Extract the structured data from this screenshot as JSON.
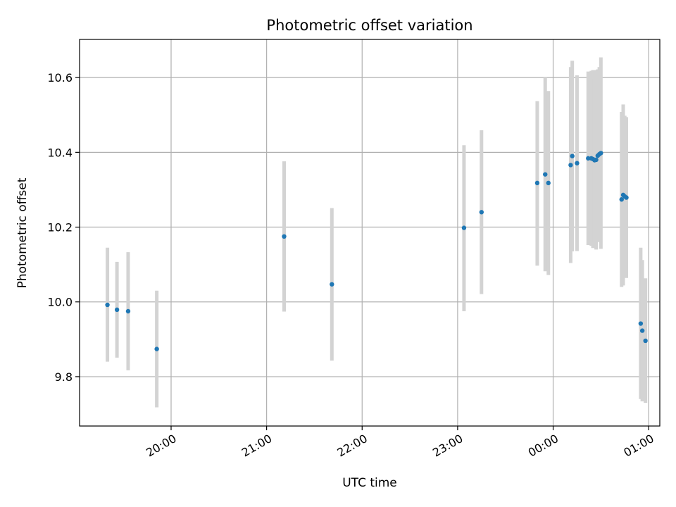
{
  "chart_data": {
    "type": "scatter",
    "title": "Photometric offset variation",
    "xlabel": "UTC time",
    "ylabel": "Photometric offset",
    "grid": true,
    "x_tick_labels": [
      "20:00",
      "21:00",
      "22:00",
      "23:00",
      "00:00",
      "01:00"
    ],
    "x_tick_minutes": [
      1200,
      1260,
      1320,
      1380,
      1440,
      1500
    ],
    "xlim_minutes": [
      1142.5,
      1507
    ],
    "y_ticks": [
      9.8,
      10.0,
      10.2,
      10.4,
      10.6
    ],
    "y_tick_labels": [
      "9.8",
      "10.0",
      "10.2",
      "10.4",
      "10.6"
    ],
    "ylim": [
      9.668,
      10.702
    ],
    "colors": {
      "point": "#1f77b4",
      "errorbar": "#d3d3d3",
      "grid": "#b0b0b0"
    },
    "points": [
      {
        "t": "19:20",
        "y": 9.992,
        "lo": 9.84,
        "hi": 10.145
      },
      {
        "t": "19:26",
        "y": 9.979,
        "lo": 9.851,
        "hi": 10.107
      },
      {
        "t": "19:33",
        "y": 9.975,
        "lo": 9.817,
        "hi": 10.133
      },
      {
        "t": "19:51",
        "y": 9.874,
        "lo": 9.718,
        "hi": 10.03
      },
      {
        "t": "21:11",
        "y": 10.175,
        "lo": 9.974,
        "hi": 10.376
      },
      {
        "t": "21:41",
        "y": 10.047,
        "lo": 9.843,
        "hi": 10.251
      },
      {
        "t": "23:04",
        "y": 10.198,
        "lo": 9.975,
        "hi": 10.419
      },
      {
        "t": "23:15",
        "y": 10.24,
        "lo": 10.021,
        "hi": 10.459
      },
      {
        "t": "23:50",
        "y": 10.318,
        "lo": 10.097,
        "hi": 10.537
      },
      {
        "t": "23:55",
        "y": 10.341,
        "lo": 10.082,
        "hi": 10.6
      },
      {
        "t": "23:57",
        "y": 10.318,
        "lo": 10.072,
        "hi": 10.564
      },
      {
        "t": "00:11",
        "y": 10.366,
        "lo": 10.104,
        "hi": 10.628
      },
      {
        "t": "00:12",
        "y": 10.39,
        "lo": 10.135,
        "hi": 10.645
      },
      {
        "t": "00:15",
        "y": 10.371,
        "lo": 10.136,
        "hi": 10.606
      },
      {
        "t": "00:22",
        "y": 10.384,
        "lo": 10.152,
        "hi": 10.616
      },
      {
        "t": "00:24",
        "y": 10.384,
        "lo": 10.15,
        "hi": 10.618
      },
      {
        "t": "00:25",
        "y": 10.382,
        "lo": 10.144,
        "hi": 10.62
      },
      {
        "t": "00:26",
        "y": 10.379,
        "lo": 10.16,
        "hi": 10.598
      },
      {
        "t": "00:27",
        "y": 10.38,
        "lo": 10.14,
        "hi": 10.62
      },
      {
        "t": "00:28",
        "y": 10.391,
        "lo": 10.16,
        "hi": 10.622
      },
      {
        "t": "00:29",
        "y": 10.395,
        "lo": 10.162,
        "hi": 10.628
      },
      {
        "t": "00:30",
        "y": 10.398,
        "lo": 10.142,
        "hi": 10.654
      },
      {
        "t": "00:43",
        "y": 10.274,
        "lo": 10.04,
        "hi": 10.508
      },
      {
        "t": "00:44",
        "y": 10.286,
        "lo": 10.044,
        "hi": 10.528
      },
      {
        "t": "00:45",
        "y": 10.282,
        "lo": 10.066,
        "hi": 10.498
      },
      {
        "t": "00:46",
        "y": 10.279,
        "lo": 10.064,
        "hi": 10.494
      },
      {
        "t": "00:55",
        "y": 9.942,
        "lo": 9.74,
        "hi": 10.145
      },
      {
        "t": "00:56",
        "y": 9.923,
        "lo": 9.734,
        "hi": 10.112
      },
      {
        "t": "00:58",
        "y": 9.896,
        "lo": 9.73,
        "hi": 10.063
      }
    ]
  }
}
